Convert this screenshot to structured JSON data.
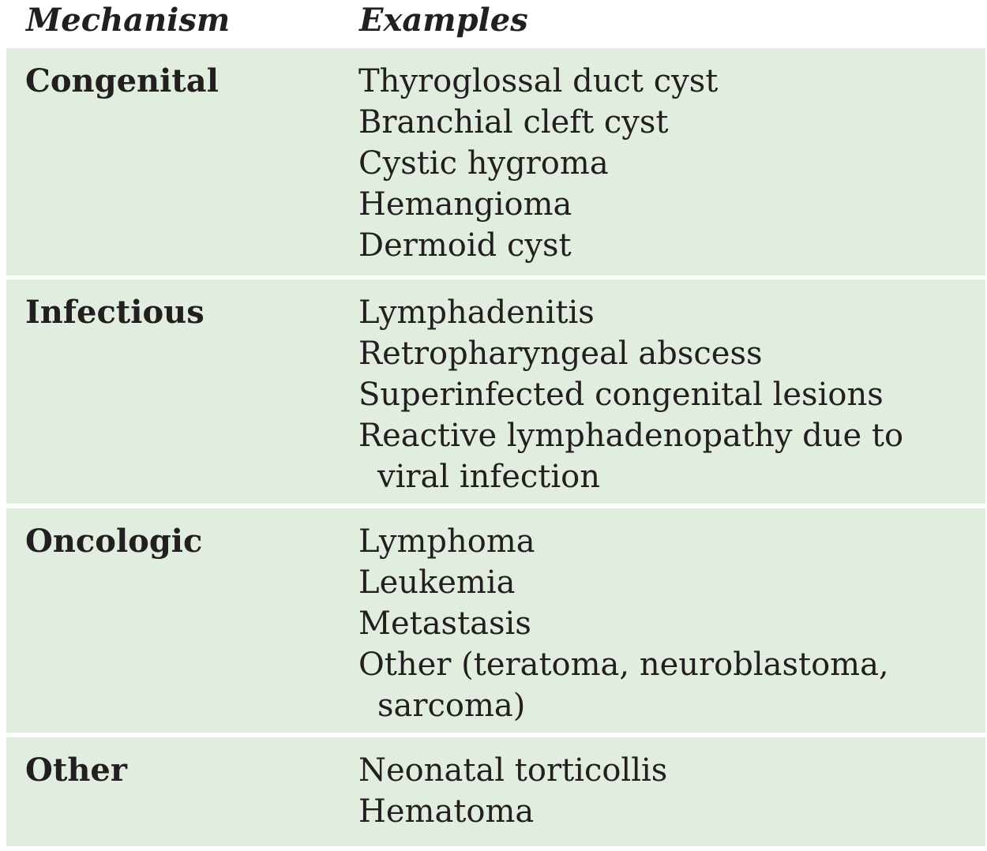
{
  "table": {
    "headers": {
      "mechanism": "Mechanism",
      "examples": "Examples"
    },
    "rows": [
      {
        "mechanism": "Congenital",
        "examples": [
          [
            "Thyroglossal duct cyst"
          ],
          [
            "Branchial cleft cyst"
          ],
          [
            "Cystic hygroma"
          ],
          [
            "Hemangioma"
          ],
          [
            "Dermoid cyst"
          ]
        ]
      },
      {
        "mechanism": "Infectious",
        "examples": [
          [
            "Lymphadenitis"
          ],
          [
            "Retropharyngeal abscess"
          ],
          [
            "Superinfected congenital lesions"
          ],
          [
            "Reactive lymphadenopathy due to",
            "viral infection"
          ]
        ]
      },
      {
        "mechanism": "Oncologic",
        "examples": [
          [
            "Lymphoma"
          ],
          [
            "Leukemia"
          ],
          [
            "Metastasis"
          ],
          [
            "Other (teratoma, neuroblastoma,",
            "sarcoma)"
          ]
        ]
      },
      {
        "mechanism": "Other",
        "examples": [
          [
            "Neonatal torticollis"
          ],
          [
            "Hematoma"
          ]
        ]
      }
    ]
  }
}
